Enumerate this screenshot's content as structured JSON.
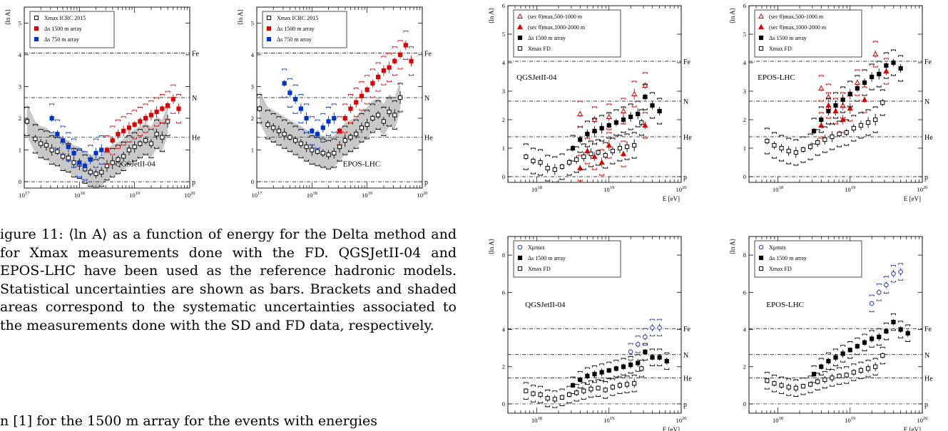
{
  "caption": {
    "label": "igure 11:",
    "text": "⟨ln A⟩ as a function of energy for the Delta method and for Xmax measurements done with the FD. QGSJetII-04 and EPOS-LHC have been used as the reference hadronic models. Statistical uncertainties are shown as bars. Brackets and shaded areas correspond to the systematic uncertainties associated to the measurements done with the SD and FD data, respectively."
  },
  "body_line": "n [1] for the 1500 m array for the events with energies",
  "panels": [
    {
      "model": "QGSJetII-04",
      "ylabel": "⟨ln A⟩",
      "xlabel": "",
      "yticks": [
        "0",
        "1",
        "2",
        "3",
        "4",
        "5"
      ],
      "xticks": [
        "10^17",
        "10^18",
        "10^19",
        "10^20"
      ],
      "legend": [
        "Xmax ICRC 2015",
        "Δs 1500 m array",
        "Δs 750 m array"
      ],
      "refs": [
        "p",
        "He",
        "N",
        "Fe"
      ]
    },
    {
      "model": "EPOS-LHC",
      "ylabel": "⟨ln A⟩",
      "xlabel": "",
      "yticks": [
        "0",
        "1",
        "2",
        "3",
        "4",
        "5"
      ],
      "xticks": [
        "10^17",
        "10^18",
        "10^19",
        "10^20"
      ],
      "legend": [
        "Xmax ICRC 2015",
        "Δs 1500 m array",
        "Δs 750 m array"
      ],
      "refs": [
        "p",
        "He",
        "N",
        "Fe"
      ]
    },
    {
      "model": "QGSJetII-04",
      "ylabel": "⟨ln A⟩",
      "xlabel": "E [eV]",
      "yticks": [
        "0",
        "1",
        "2",
        "3",
        "4",
        "5",
        "6"
      ],
      "xticks": [
        "10^18",
        "10^19",
        "10^20"
      ],
      "legend": [
        "(sec θ)max,500-1000 m",
        "(sec θ)max,1000-2000 m",
        "Δs 1500 m array",
        "Xmax FD"
      ],
      "refs": [
        "p",
        "He",
        "N",
        "Fe"
      ]
    },
    {
      "model": "EPOS-LHC",
      "ylabel": "⟨ln A⟩",
      "xlabel": "E [eV]",
      "yticks": [
        "0",
        "1",
        "2",
        "3",
        "4",
        "5",
        "6"
      ],
      "xticks": [
        "10^18",
        "10^19",
        "10^20"
      ],
      "legend": [
        "(sec θ)max,500-1000 m",
        "(sec θ)max,1000-2000 m",
        "Δs 1500 m array",
        "Xmax FD"
      ],
      "refs": [
        "p",
        "He",
        "N",
        "Fe"
      ]
    },
    {
      "model": "QGSJetII-04",
      "ylabel": "⟨ln A⟩",
      "xlabel": "E [eV]",
      "yticks": [
        "0",
        "2",
        "4",
        "6",
        "8"
      ],
      "xticks": [
        "10^18",
        "10^19",
        "10^20"
      ],
      "legend": [
        "Xμmax",
        "Δs 1500 m array",
        "Xmax FD"
      ],
      "refs": [
        "p",
        "He",
        "N",
        "Fe"
      ]
    },
    {
      "model": "EPOS-LHC",
      "ylabel": "⟨ln A⟩",
      "xlabel": "E [eV]",
      "yticks": [
        "0",
        "2",
        "4",
        "6",
        "8"
      ],
      "xticks": [
        "10^18",
        "10^19",
        "10^20"
      ],
      "legend": [
        "Xμmax",
        "Δs 1500 m array",
        "Xmax FD"
      ],
      "refs": [
        "p",
        "He",
        "N",
        "Fe"
      ]
    }
  ],
  "chart_data": [
    {
      "type": "scatter",
      "series": [
        {
          "name": "Xmax ICRC 2015",
          "x": [
            17.05,
            17.2,
            17.3,
            17.4,
            17.5,
            17.6,
            17.7,
            17.8,
            17.9,
            18.0,
            18.1,
            18.2,
            18.3,
            18.4,
            18.5,
            18.6,
            18.7,
            18.8,
            18.9,
            19.0,
            19.1,
            19.2,
            19.3,
            19.4,
            19.5,
            19.6
          ],
          "y": [
            1.9,
            1.35,
            1.2,
            1.15,
            1.0,
            0.95,
            0.8,
            0.75,
            0.6,
            0.55,
            0.4,
            0.3,
            0.25,
            0.3,
            0.5,
            0.6,
            0.7,
            0.8,
            1.0,
            1.1,
            1.2,
            1.3,
            1.2,
            1.5,
            1.4,
            1.9
          ]
        },
        {
          "name": "Δs 1500 m array",
          "x": [
            18.5,
            18.6,
            18.7,
            18.8,
            18.9,
            19.0,
            19.1,
            19.2,
            19.3,
            19.4,
            19.5,
            19.6,
            19.7,
            19.8
          ],
          "y": [
            1.0,
            1.3,
            1.5,
            1.6,
            1.7,
            1.8,
            1.9,
            2.0,
            2.1,
            2.2,
            2.3,
            2.4,
            2.6,
            2.3
          ]
        },
        {
          "name": "Δs 750 m array",
          "x": [
            17.5,
            17.6,
            17.7,
            17.8,
            17.9,
            18.0,
            18.1,
            18.2,
            18.3,
            18.4
          ],
          "y": [
            2.0,
            1.5,
            1.3,
            1.1,
            0.9,
            0.6,
            0.5,
            0.7,
            0.9,
            1.0
          ]
        }
      ],
      "ylim": [
        -0.2,
        5.5
      ],
      "xlim": [
        17,
        20
      ]
    },
    {
      "type": "scatter",
      "series": [
        {
          "name": "Xmax ICRC 2015",
          "x": [
            17.05,
            17.2,
            17.3,
            17.4,
            17.5,
            17.6,
            17.7,
            17.8,
            17.9,
            18.0,
            18.1,
            18.2,
            18.3,
            18.4,
            18.5,
            18.6,
            18.7,
            18.8,
            18.9,
            19.0,
            19.1,
            19.2,
            19.3,
            19.4,
            19.5,
            19.6
          ],
          "y": [
            2.3,
            1.8,
            1.7,
            1.6,
            1.5,
            1.4,
            1.3,
            1.2,
            1.1,
            1.0,
            0.95,
            0.9,
            0.85,
            0.9,
            1.1,
            1.3,
            1.4,
            1.5,
            1.7,
            1.8,
            2.0,
            2.1,
            1.9,
            2.2,
            2.1,
            2.65
          ]
        },
        {
          "name": "Δs 1500 m array",
          "x": [
            18.5,
            18.6,
            18.7,
            18.8,
            18.9,
            19.0,
            19.1,
            19.2,
            19.3,
            19.4,
            19.5,
            19.6,
            19.7,
            19.8
          ],
          "y": [
            1.6,
            2.0,
            2.3,
            2.5,
            2.7,
            2.9,
            3.1,
            3.3,
            3.5,
            3.6,
            3.8,
            4.0,
            4.3,
            3.8
          ]
        },
        {
          "name": "Δs 750 m array",
          "x": [
            17.5,
            17.6,
            17.7,
            17.8,
            17.9,
            18.0,
            18.1,
            18.2,
            18.3,
            18.4
          ],
          "y": [
            3.1,
            2.8,
            2.6,
            2.3,
            2.0,
            1.6,
            1.5,
            1.7,
            1.9,
            2.0
          ]
        }
      ],
      "ylim": [
        -0.2,
        5.5
      ],
      "xlim": [
        17,
        20
      ]
    },
    {
      "type": "scatter",
      "series": [
        {
          "name": "(sec θ)max,500-1000 m",
          "x": [
            18.6,
            18.8,
            19.0,
            19.2,
            19.35,
            19.5
          ],
          "y": [
            2.2,
            2.0,
            2.1,
            2.3,
            2.9,
            3.2
          ]
        },
        {
          "name": "(sec θ)max,1000-2000 m",
          "x": [
            18.6,
            18.7,
            18.8,
            18.9,
            19.0,
            19.2,
            19.5
          ],
          "y": [
            0.3,
            0.9,
            0.7,
            0.5,
            1.1,
            0.8,
            1.8
          ]
        },
        {
          "name": "Δs 1500 m array",
          "x": [
            18.5,
            18.6,
            18.7,
            18.8,
            18.9,
            19.0,
            19.1,
            19.2,
            19.3,
            19.4,
            19.5,
            19.6,
            19.7
          ],
          "y": [
            1.0,
            1.3,
            1.5,
            1.6,
            1.7,
            1.8,
            1.9,
            2.0,
            2.1,
            2.2,
            2.8,
            2.5,
            2.3
          ]
        },
        {
          "name": "Xmax FD",
          "x": [
            17.85,
            17.95,
            18.05,
            18.15,
            18.25,
            18.35,
            18.45,
            18.55,
            18.65,
            18.75,
            18.85,
            18.95,
            19.05,
            19.15,
            19.25,
            19.35,
            19.45
          ],
          "y": [
            0.7,
            0.55,
            0.5,
            0.3,
            0.25,
            0.35,
            0.5,
            0.6,
            0.7,
            0.8,
            0.85,
            0.75,
            0.9,
            1.0,
            1.05,
            1.1,
            1.9
          ]
        }
      ],
      "ylim": [
        -0.2,
        6
      ],
      "xlim": [
        17.6,
        20
      ]
    },
    {
      "type": "scatter",
      "series": [
        {
          "name": "(sec θ)max,500-1000 m",
          "x": [
            18.6,
            18.7,
            18.8,
            18.9,
            19.0,
            19.1,
            19.35
          ],
          "y": [
            3.1,
            2.8,
            2.3,
            2.5,
            2.9,
            3.3,
            4.3
          ]
        },
        {
          "name": "(sec θ)max,1000-2000 m",
          "x": [
            18.6,
            18.7,
            18.8,
            18.9,
            19.0,
            19.2,
            19.5
          ],
          "y": [
            1.8,
            2.5,
            2.3,
            2.0,
            2.4,
            2.7,
            3.7
          ]
        },
        {
          "name": "Δs 1500 m array",
          "x": [
            18.5,
            18.6,
            18.7,
            18.8,
            18.9,
            19.0,
            19.1,
            19.2,
            19.3,
            19.4,
            19.5,
            19.6,
            19.7
          ],
          "y": [
            1.6,
            2.0,
            2.3,
            2.5,
            2.7,
            2.9,
            3.1,
            3.3,
            3.5,
            3.6,
            3.9,
            4.0,
            3.8
          ]
        },
        {
          "name": "Xmax FD",
          "x": [
            17.85,
            17.95,
            18.05,
            18.15,
            18.25,
            18.35,
            18.45,
            18.55,
            18.65,
            18.75,
            18.85,
            18.95,
            19.05,
            19.15,
            19.25,
            19.35,
            19.45
          ],
          "y": [
            1.25,
            1.1,
            1.0,
            0.9,
            0.85,
            0.95,
            1.05,
            1.2,
            1.3,
            1.4,
            1.5,
            1.55,
            1.7,
            1.8,
            1.9,
            2.0,
            2.6
          ]
        }
      ],
      "ylim": [
        -0.2,
        6
      ],
      "xlim": [
        17.6,
        20
      ]
    },
    {
      "type": "scatter",
      "series": [
        {
          "name": "Xμmax",
          "x": [
            19.3,
            19.4,
            19.5,
            19.6,
            19.7
          ],
          "y": [
            2.8,
            3.2,
            3.6,
            4.1,
            4.1
          ]
        },
        {
          "name": "Δs 1500 m array",
          "x": [
            18.5,
            18.6,
            18.7,
            18.8,
            18.9,
            19.0,
            19.1,
            19.2,
            19.3,
            19.4,
            19.5,
            19.6,
            19.7,
            19.8
          ],
          "y": [
            1.0,
            1.3,
            1.5,
            1.6,
            1.7,
            1.8,
            1.9,
            2.0,
            2.1,
            2.2,
            2.8,
            2.5,
            2.5,
            2.3
          ]
        },
        {
          "name": "Xmax FD",
          "x": [
            17.85,
            17.95,
            18.05,
            18.15,
            18.25,
            18.35,
            18.45,
            18.55,
            18.65,
            18.75,
            18.85,
            18.95,
            19.05,
            19.15,
            19.25,
            19.35,
            19.45
          ],
          "y": [
            0.7,
            0.55,
            0.5,
            0.3,
            0.25,
            0.35,
            0.5,
            0.6,
            0.7,
            0.8,
            0.85,
            0.75,
            0.9,
            1.0,
            1.05,
            1.1,
            1.9
          ]
        }
      ],
      "ylim": [
        -0.5,
        9
      ],
      "xlim": [
        17.6,
        20
      ]
    },
    {
      "type": "scatter",
      "series": [
        {
          "name": "Xμmax",
          "x": [
            19.3,
            19.4,
            19.5,
            19.6,
            19.7
          ],
          "y": [
            5.4,
            6.0,
            6.4,
            7.0,
            7.1
          ]
        },
        {
          "name": "Δs 1500 m array",
          "x": [
            18.5,
            18.6,
            18.7,
            18.8,
            18.9,
            19.0,
            19.1,
            19.2,
            19.3,
            19.4,
            19.5,
            19.6,
            19.7,
            19.8
          ],
          "y": [
            1.6,
            2.0,
            2.3,
            2.5,
            2.7,
            2.9,
            3.1,
            3.3,
            3.5,
            3.6,
            3.9,
            4.4,
            4.0,
            3.8
          ]
        },
        {
          "name": "Xmax FD",
          "x": [
            17.85,
            17.95,
            18.05,
            18.15,
            18.25,
            18.35,
            18.45,
            18.55,
            18.65,
            18.75,
            18.85,
            18.95,
            19.05,
            19.15,
            19.25,
            19.35,
            19.45
          ],
          "y": [
            1.25,
            1.1,
            1.0,
            0.9,
            0.85,
            0.95,
            1.05,
            1.2,
            1.3,
            1.4,
            1.5,
            1.55,
            1.7,
            1.8,
            1.9,
            2.0,
            2.6
          ]
        }
      ],
      "ylim": [
        -0.5,
        9
      ],
      "xlim": [
        17.6,
        20
      ]
    }
  ]
}
